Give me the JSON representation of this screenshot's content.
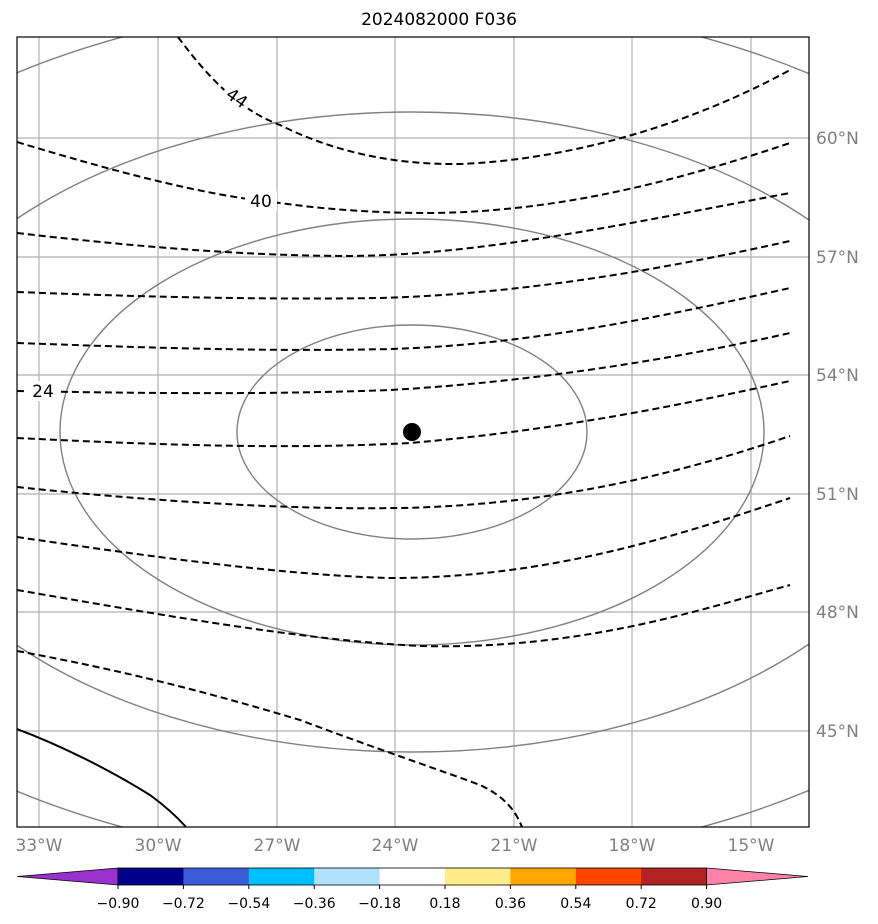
{
  "title": "2024082000 F036",
  "lat_labels": [
    "60°N",
    "57°N",
    "54°N",
    "51°N",
    "48°N",
    "45°N"
  ],
  "lon_labels": [
    "33°W",
    "30°W",
    "27°W",
    "24°W",
    "21°W",
    "18°W",
    "15°W"
  ],
  "contour_labels": [
    "44",
    "40",
    "24"
  ],
  "colorbar": {
    "colors": [
      "#9932cc",
      "#00008b",
      "#3b5bd6",
      "#00bfff",
      "#b0e2ff",
      "#ffffff",
      "#ffec8b",
      "#ffa500",
      "#ff4500",
      "#b22222",
      "#ff82ab"
    ],
    "ticks": [
      "−0.90",
      "−0.72",
      "−0.54",
      "−0.36",
      "−0.18",
      "0.18",
      "0.36",
      "0.54",
      "0.72",
      "0.90"
    ]
  },
  "storm_marker": "center-dot"
}
